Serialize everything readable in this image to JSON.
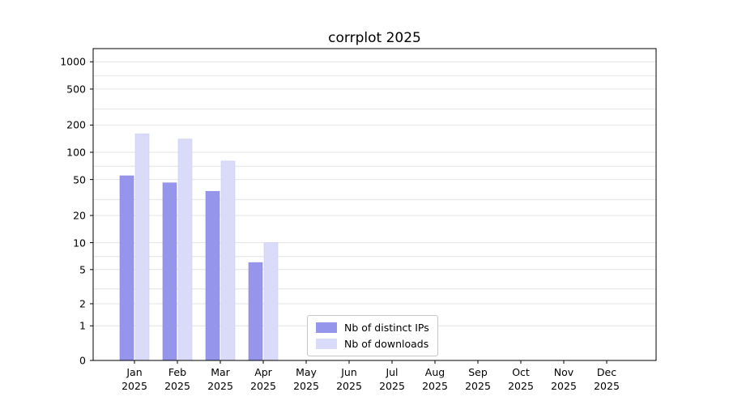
{
  "title": "corrplot 2025",
  "chart_data": {
    "type": "bar",
    "title": "corrplot 2025",
    "x_year": "2025",
    "categories": [
      "Jan",
      "Feb",
      "Mar",
      "Apr",
      "May",
      "Jun",
      "Jul",
      "Aug",
      "Sep",
      "Oct",
      "Nov",
      "Dec"
    ],
    "series": [
      {
        "name": "Nb of distinct IPs",
        "color": "#9595ec",
        "edge_color": "#8a8ae6",
        "values": [
          55,
          46,
          37,
          6,
          0,
          0,
          0,
          0,
          0,
          0,
          0,
          0
        ]
      },
      {
        "name": "Nb of downloads",
        "color": "#dadaf9",
        "edge_color": "#ccccf4",
        "values": [
          160,
          140,
          80,
          10,
          0,
          0,
          0,
          0,
          0,
          0,
          0,
          0
        ]
      }
    ],
    "yscale": "asinh (log-like scale that includes 0)",
    "yticks": [
      0,
      1,
      2,
      5,
      10,
      20,
      50,
      100,
      200,
      500,
      1000
    ],
    "gridline_values": [
      1,
      2,
      3,
      5,
      7,
      10,
      20,
      30,
      50,
      70,
      100,
      200,
      300,
      500,
      700,
      1000
    ],
    "ylim": [
      0,
      1400
    ],
    "grid": true,
    "grid_color": "#e4e4e4",
    "axis_color": "#000000",
    "legend_position": "bottom-center"
  }
}
